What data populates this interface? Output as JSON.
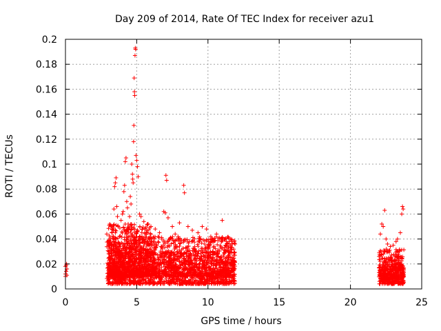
{
  "chart_data": {
    "type": "scatter",
    "title": "Day 209 of 2014, Rate Of TEC Index for receiver azu1",
    "xlabel": "GPS time / hours",
    "ylabel": "ROTI / TECUs",
    "xlim": [
      0,
      25
    ],
    "ylim": [
      0,
      0.2
    ],
    "x_ticks": [
      0,
      5,
      10,
      15,
      20,
      25
    ],
    "x_tick_labels": [
      "0",
      "5",
      "10",
      "15",
      "20",
      "25"
    ],
    "y_ticks": [
      0,
      0.02,
      0.04,
      0.06,
      0.08,
      0.1,
      0.12,
      0.14,
      0.16,
      0.18,
      0.2
    ],
    "y_tick_labels": [
      "0",
      "0.02",
      "0.04",
      "0.06",
      "0.08",
      "0.1",
      "0.12",
      "0.14",
      "0.16",
      "0.18",
      "0.2"
    ],
    "grid": true,
    "marker": "plus",
    "color": "#ff0000",
    "series": [
      {
        "name": "ROTI",
        "points": [
          [
            0.0,
            0.01
          ],
          [
            0.0,
            0.012
          ],
          [
            0.05,
            0.014
          ],
          [
            0.1,
            0.016
          ],
          [
            0.0,
            0.018
          ],
          [
            0.05,
            0.019
          ],
          [
            0.1,
            0.011
          ],
          [
            0.08,
            0.02
          ],
          [
            2.9,
            0.044
          ],
          [
            3.0,
            0.038
          ],
          [
            3.05,
            0.03
          ],
          [
            3.1,
            0.025
          ],
          [
            3.2,
            0.035
          ],
          [
            3.25,
            0.045
          ],
          [
            3.3,
            0.05
          ],
          [
            3.35,
            0.04
          ],
          [
            3.4,
            0.064
          ],
          [
            3.45,
            0.082
          ],
          [
            3.5,
            0.085
          ],
          [
            3.55,
            0.089
          ],
          [
            3.6,
            0.066
          ],
          [
            3.65,
            0.058
          ],
          [
            3.7,
            0.05
          ],
          [
            3.8,
            0.042
          ],
          [
            3.9,
            0.055
          ],
          [
            4.0,
            0.06
          ],
          [
            4.05,
            0.062
          ],
          [
            4.1,
            0.078
          ],
          [
            4.15,
            0.083
          ],
          [
            4.2,
            0.102
          ],
          [
            4.25,
            0.105
          ],
          [
            4.3,
            0.07
          ],
          [
            4.35,
            0.065
          ],
          [
            4.4,
            0.052
          ],
          [
            4.5,
            0.058
          ],
          [
            4.55,
            0.074
          ],
          [
            4.6,
            0.068
          ],
          [
            4.65,
            0.1
          ],
          [
            4.7,
            0.092
          ],
          [
            4.72,
            0.088
          ],
          [
            4.75,
            0.085
          ],
          [
            4.78,
            0.118
          ],
          [
            4.8,
            0.131
          ],
          [
            4.82,
            0.169
          ],
          [
            4.84,
            0.158
          ],
          [
            4.86,
            0.155
          ],
          [
            4.88,
            0.187
          ],
          [
            4.9,
            0.193
          ],
          [
            4.92,
            0.192
          ],
          [
            4.95,
            0.107
          ],
          [
            5.0,
            0.103
          ],
          [
            5.05,
            0.098
          ],
          [
            5.1,
            0.09
          ],
          [
            5.2,
            0.06
          ],
          [
            5.3,
            0.058
          ],
          [
            5.5,
            0.054
          ],
          [
            5.8,
            0.052
          ],
          [
            6.0,
            0.05
          ],
          [
            6.3,
            0.048
          ],
          [
            6.6,
            0.045
          ],
          [
            6.9,
            0.062
          ],
          [
            7.0,
            0.061
          ],
          [
            7.05,
            0.091
          ],
          [
            7.1,
            0.087
          ],
          [
            7.2,
            0.057
          ],
          [
            7.5,
            0.05
          ],
          [
            7.7,
            0.044
          ],
          [
            8.0,
            0.053
          ],
          [
            8.3,
            0.083
          ],
          [
            8.35,
            0.077
          ],
          [
            8.6,
            0.05
          ],
          [
            8.9,
            0.047
          ],
          [
            9.3,
            0.045
          ],
          [
            9.6,
            0.05
          ],
          [
            9.9,
            0.048
          ],
          [
            10.2,
            0.042
          ],
          [
            10.6,
            0.044
          ],
          [
            11.0,
            0.055
          ],
          [
            11.3,
            0.038
          ],
          [
            11.6,
            0.04
          ],
          [
            11.9,
            0.036
          ],
          [
            22.1,
            0.044
          ],
          [
            22.2,
            0.052
          ],
          [
            22.3,
            0.05
          ],
          [
            22.4,
            0.063
          ],
          [
            22.5,
            0.04
          ],
          [
            22.6,
            0.036
          ],
          [
            22.8,
            0.034
          ],
          [
            23.0,
            0.035
          ],
          [
            23.2,
            0.038
          ],
          [
            23.3,
            0.04
          ],
          [
            23.5,
            0.045
          ],
          [
            23.6,
            0.06
          ],
          [
            23.65,
            0.066
          ],
          [
            23.7,
            0.064
          ]
        ],
        "bands": [
          {
            "x_start": 2.9,
            "x_end": 11.9,
            "y_low": 0.004,
            "y_high": 0.042,
            "count": 1600
          },
          {
            "x_start": 3.0,
            "x_end": 6.0,
            "y_low": 0.01,
            "y_high": 0.052,
            "count": 500
          },
          {
            "x_start": 3.0,
            "x_end": 11.9,
            "y_low": 0.01,
            "y_high": 0.03,
            "count": 700
          },
          {
            "x_start": 22.0,
            "x_end": 23.75,
            "y_low": 0.004,
            "y_high": 0.032,
            "count": 380
          },
          {
            "x_start": 22.0,
            "x_end": 23.75,
            "y_low": 0.008,
            "y_high": 0.02,
            "count": 160
          }
        ]
      }
    ]
  }
}
